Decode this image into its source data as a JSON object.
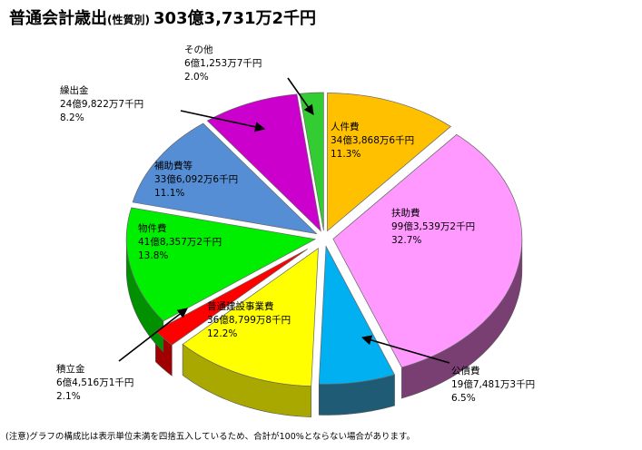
{
  "title": {
    "main": "普通会計歳出",
    "sub": "(性質別)",
    "total": "303億3,731万2千円"
  },
  "footnote": "(注意)グラフの構成比は表示単位未満を四捨五入しているため、合計が100%とならない場合があります。",
  "chart_data": {
    "type": "pie",
    "title": "普通会計歳出(性質別) 303億3,731万2千円",
    "unit": "千円",
    "slices": [
      {
        "name": "人件費",
        "amount_label": "34億3,868万6千円",
        "value": 3438686,
        "percent": 11.3,
        "percent_label": "11.3%",
        "color": "#ffc000",
        "side": "#b38600"
      },
      {
        "name": "扶助費",
        "amount_label": "99億3,539万2千円",
        "value": 9935392,
        "percent": 32.7,
        "percent_label": "32.7%",
        "color": "#ff99ff",
        "side": "#7a3f72"
      },
      {
        "name": "公債費",
        "amount_label": "19億7,481万3千円",
        "value": 1974813,
        "percent": 6.5,
        "percent_label": "6.5%",
        "color": "#00b0f0",
        "side": "#1f5b75"
      },
      {
        "name": "普通建設事業費",
        "amount_label": "36億8,799万8千円",
        "value": 3687998,
        "percent": 12.2,
        "percent_label": "12.2%",
        "color": "#ffff00",
        "side": "#a8a800"
      },
      {
        "name": "積立金",
        "amount_label": "6億4,516万1千円",
        "value": 645161,
        "percent": 2.1,
        "percent_label": "2.1%",
        "color": "#ff0000",
        "side": "#a00000"
      },
      {
        "name": "物件費",
        "amount_label": "41億8,357万2千円",
        "value": 4183572,
        "percent": 13.8,
        "percent_label": "13.8%",
        "color": "#00ee00",
        "side": "#009000"
      },
      {
        "name": "補助費等",
        "amount_label": "33億6,092万6千円",
        "value": 3360926,
        "percent": 11.1,
        "percent_label": "11.1%",
        "color": "#558ed5",
        "side": "#2a4a70"
      },
      {
        "name": "繰出金",
        "amount_label": "24億9,822万7千円",
        "value": 2498227,
        "percent": 8.2,
        "percent_label": "8.2%",
        "color": "#cc00cc",
        "side": "#700070"
      },
      {
        "name": "その他",
        "amount_label": "6億1,253万7千円",
        "value": 612537,
        "percent": 2.0,
        "percent_label": "2.0%",
        "color": "#33cc33",
        "side": "#1d7a1d"
      }
    ]
  }
}
